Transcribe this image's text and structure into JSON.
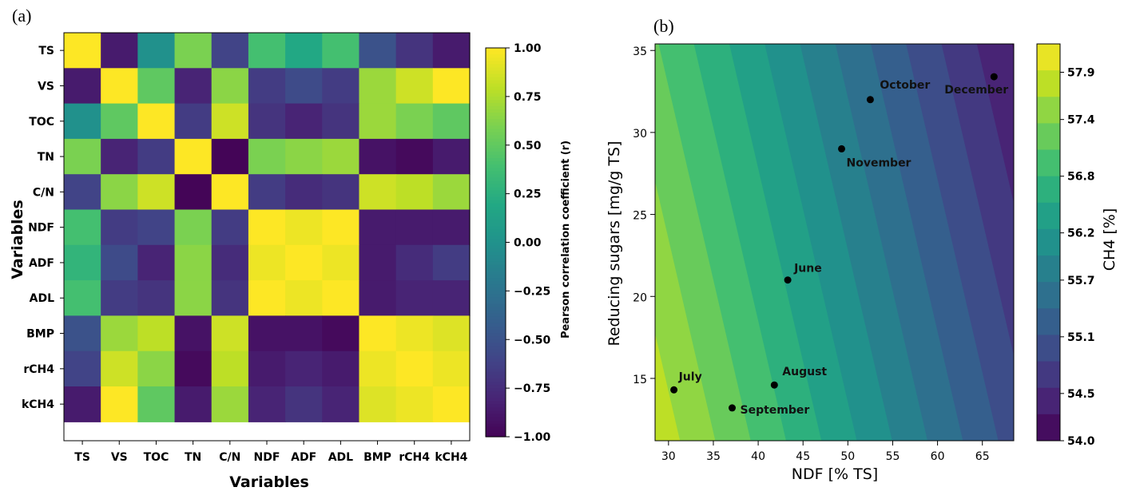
{
  "panels": {
    "a_label": "(a)",
    "b_label": "(b)"
  },
  "chart_data": [
    {
      "type": "heatmap",
      "panel": "a",
      "title": "",
      "xlabel": "Variables",
      "ylabel": "Variables",
      "variables": [
        "TS",
        "VS",
        "TOC",
        "TN",
        "C/N",
        "NDF",
        "ADF",
        "ADL",
        "BMP",
        "rCH4",
        "kCH4"
      ],
      "matrix": [
        [
          1.0,
          -0.85,
          0.0,
          0.6,
          -0.6,
          0.4,
          0.2,
          0.4,
          -0.5,
          -0.7,
          -0.85
        ],
        [
          -0.85,
          1.0,
          0.5,
          -0.8,
          0.65,
          -0.65,
          -0.55,
          -0.65,
          0.7,
          0.85,
          1.0
        ],
        [
          0.0,
          0.5,
          1.0,
          -0.65,
          0.85,
          -0.7,
          -0.8,
          -0.7,
          0.7,
          0.6,
          0.5
        ],
        [
          0.6,
          -0.8,
          -0.65,
          1.0,
          -0.98,
          0.6,
          0.65,
          0.7,
          -0.9,
          -0.95,
          -0.85
        ],
        [
          -0.6,
          0.65,
          0.85,
          -0.98,
          1.0,
          -0.65,
          -0.75,
          -0.7,
          0.85,
          0.8,
          0.7
        ],
        [
          0.4,
          -0.65,
          -0.6,
          0.6,
          -0.65,
          1.0,
          0.95,
          1.0,
          -0.85,
          -0.85,
          -0.85
        ],
        [
          0.3,
          -0.55,
          -0.8,
          0.65,
          -0.75,
          0.95,
          1.0,
          0.95,
          -0.85,
          -0.75,
          -0.65
        ],
        [
          0.4,
          -0.65,
          -0.7,
          0.65,
          -0.7,
          1.0,
          0.95,
          1.0,
          -0.85,
          -0.8,
          -0.8
        ],
        [
          -0.5,
          0.7,
          0.8,
          -0.9,
          0.85,
          -0.9,
          -0.9,
          -0.95,
          1.0,
          0.95,
          0.9
        ],
        [
          -0.6,
          0.85,
          0.65,
          -0.95,
          0.8,
          -0.85,
          -0.8,
          -0.85,
          0.95,
          1.0,
          0.95
        ],
        [
          -0.85,
          1.0,
          0.5,
          -0.85,
          0.7,
          -0.8,
          -0.7,
          -0.8,
          0.9,
          0.95,
          1.0
        ]
      ],
      "colorbar": {
        "label": "Pearson correlation coefficient (r)",
        "range": [
          -1.0,
          1.0
        ],
        "ticks": [
          "1.00",
          "0.75",
          "0.50",
          "0.25",
          "0.00",
          "−0.25",
          "−0.50",
          "−0.75",
          "−1.00"
        ],
        "tick_values": [
          1.0,
          0.75,
          0.5,
          0.25,
          0.0,
          -0.25,
          -0.5,
          -0.75,
          -1.0
        ]
      },
      "colormap": "viridis"
    },
    {
      "type": "scatter",
      "panel": "b",
      "title": "",
      "xlabel": "NDF [% TS]",
      "ylabel": "Reducing sugars [mg/g TS]",
      "xlim": [
        28.5,
        68.5
      ],
      "ylim": [
        11.2,
        35.4
      ],
      "xticks": [
        30,
        35,
        40,
        45,
        50,
        55,
        60,
        65
      ],
      "yticks": [
        15,
        20,
        25,
        30,
        35
      ],
      "points": [
        {
          "label": "October",
          "x": 52.5,
          "y": 32.0
        },
        {
          "label": "December",
          "x": 66.3,
          "y": 33.4
        },
        {
          "label": "November",
          "x": 49.3,
          "y": 29.0
        },
        {
          "label": "June",
          "x": 43.3,
          "y": 21.0
        },
        {
          "label": "July",
          "x": 30.6,
          "y": 14.3
        },
        {
          "label": "August",
          "x": 41.8,
          "y": 14.6
        },
        {
          "label": "September",
          "x": 37.1,
          "y": 13.2
        }
      ],
      "contour": {
        "variable": "CH4 [%]",
        "levels": [
          54.0,
          54.3,
          54.5,
          54.8,
          55.1,
          55.4,
          55.7,
          56.0,
          56.2,
          56.5,
          56.8,
          57.1,
          57.4,
          57.6,
          57.9,
          58.2
        ],
        "colorbar_label": "CH4 [%]",
        "colorbar_ticks": [
          "57.9",
          "57.4",
          "56.8",
          "56.2",
          "55.7",
          "55.1",
          "54.5",
          "54.0"
        ],
        "colorbar_tick_values": [
          57.9,
          57.4,
          56.8,
          56.2,
          55.7,
          55.1,
          54.5,
          54.0
        ]
      },
      "colormap": "viridis"
    }
  ]
}
